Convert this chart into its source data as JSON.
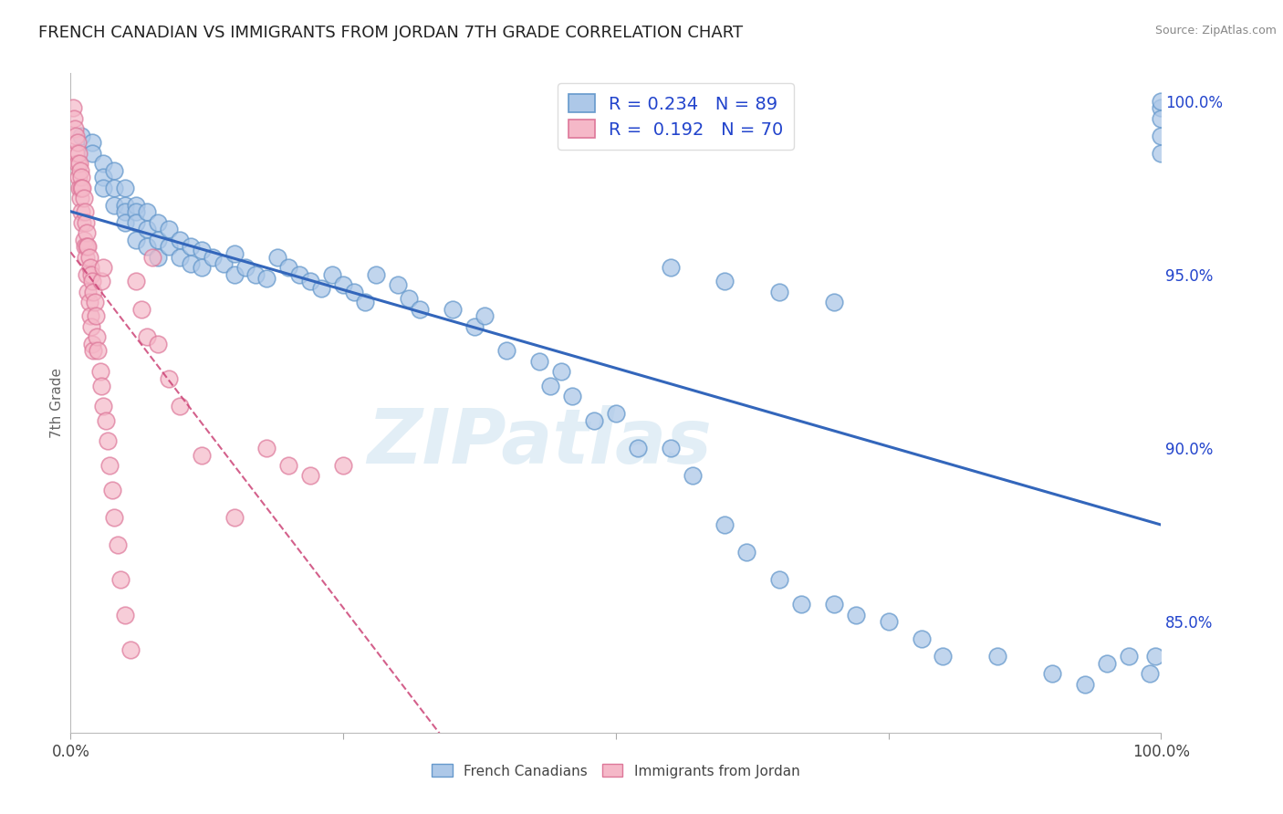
{
  "title": "FRENCH CANADIAN VS IMMIGRANTS FROM JORDAN 7TH GRADE CORRELATION CHART",
  "source": "Source: ZipAtlas.com",
  "ylabel": "7th Grade",
  "ylabel_right_ticks": [
    "100.0%",
    "95.0%",
    "90.0%",
    "85.0%"
  ],
  "ylabel_right_values": [
    1.0,
    0.95,
    0.9,
    0.85
  ],
  "xlim": [
    0.0,
    1.0
  ],
  "ylim": [
    0.818,
    1.008
  ],
  "blue_R": 0.234,
  "blue_N": 89,
  "pink_R": 0.192,
  "pink_N": 70,
  "blue_color": "#adc8e8",
  "blue_edge_color": "#6699cc",
  "blue_line_color": "#3366bb",
  "pink_color": "#f5b8c8",
  "pink_edge_color": "#dd7799",
  "pink_line_color": "#cc4477",
  "legend_R_color": "#2244cc",
  "right_tick_color": "#2244cc",
  "watermark_color": "#d0e4f0",
  "watermark": "ZIPatlas",
  "blue_label": "French Canadians",
  "pink_label": "Immigrants from Jordan",
  "blue_scatter_x": [
    0.01,
    0.02,
    0.02,
    0.03,
    0.03,
    0.03,
    0.04,
    0.04,
    0.04,
    0.05,
    0.05,
    0.05,
    0.05,
    0.06,
    0.06,
    0.06,
    0.06,
    0.07,
    0.07,
    0.07,
    0.08,
    0.08,
    0.08,
    0.09,
    0.09,
    0.1,
    0.1,
    0.11,
    0.11,
    0.12,
    0.12,
    0.13,
    0.14,
    0.15,
    0.15,
    0.16,
    0.17,
    0.18,
    0.19,
    0.2,
    0.21,
    0.22,
    0.23,
    0.24,
    0.25,
    0.26,
    0.27,
    0.28,
    0.3,
    0.31,
    0.32,
    0.35,
    0.37,
    0.38,
    0.4,
    0.43,
    0.44,
    0.45,
    0.46,
    0.48,
    0.5,
    0.52,
    0.55,
    0.57,
    0.6,
    0.62,
    0.65,
    0.67,
    0.7,
    0.72,
    0.75,
    0.78,
    0.8,
    0.85,
    0.9,
    0.93,
    0.95,
    0.97,
    0.99,
    0.995,
    1.0,
    1.0,
    1.0,
    1.0,
    1.0,
    0.55,
    0.6,
    0.65,
    0.7
  ],
  "blue_scatter_y": [
    0.99,
    0.988,
    0.985,
    0.982,
    0.978,
    0.975,
    0.98,
    0.975,
    0.97,
    0.975,
    0.97,
    0.968,
    0.965,
    0.97,
    0.968,
    0.965,
    0.96,
    0.968,
    0.963,
    0.958,
    0.965,
    0.96,
    0.955,
    0.963,
    0.958,
    0.96,
    0.955,
    0.958,
    0.953,
    0.957,
    0.952,
    0.955,
    0.953,
    0.956,
    0.95,
    0.952,
    0.95,
    0.949,
    0.955,
    0.952,
    0.95,
    0.948,
    0.946,
    0.95,
    0.947,
    0.945,
    0.942,
    0.95,
    0.947,
    0.943,
    0.94,
    0.94,
    0.935,
    0.938,
    0.928,
    0.925,
    0.918,
    0.922,
    0.915,
    0.908,
    0.91,
    0.9,
    0.9,
    0.892,
    0.878,
    0.87,
    0.862,
    0.855,
    0.855,
    0.852,
    0.85,
    0.845,
    0.84,
    0.84,
    0.835,
    0.832,
    0.838,
    0.84,
    0.835,
    0.84,
    0.998,
    0.99,
    0.985,
    1.0,
    0.995,
    0.952,
    0.948,
    0.945,
    0.942
  ],
  "pink_scatter_x": [
    0.002,
    0.003,
    0.004,
    0.005,
    0.005,
    0.006,
    0.006,
    0.007,
    0.007,
    0.008,
    0.008,
    0.009,
    0.009,
    0.01,
    0.01,
    0.01,
    0.011,
    0.011,
    0.012,
    0.012,
    0.013,
    0.013,
    0.014,
    0.014,
    0.015,
    0.015,
    0.015,
    0.016,
    0.016,
    0.017,
    0.017,
    0.018,
    0.018,
    0.019,
    0.019,
    0.02,
    0.02,
    0.021,
    0.021,
    0.022,
    0.023,
    0.024,
    0.025,
    0.027,
    0.028,
    0.03,
    0.032,
    0.034,
    0.036,
    0.038,
    0.04,
    0.043,
    0.046,
    0.05,
    0.055,
    0.06,
    0.065,
    0.07,
    0.075,
    0.08,
    0.09,
    0.1,
    0.12,
    0.15,
    0.18,
    0.2,
    0.22,
    0.25,
    0.028,
    0.03
  ],
  "pink_scatter_y": [
    0.998,
    0.995,
    0.992,
    0.99,
    0.985,
    0.988,
    0.982,
    0.985,
    0.978,
    0.982,
    0.975,
    0.98,
    0.972,
    0.978,
    0.968,
    0.975,
    0.975,
    0.965,
    0.972,
    0.96,
    0.968,
    0.958,
    0.965,
    0.955,
    0.962,
    0.958,
    0.95,
    0.958,
    0.945,
    0.955,
    0.942,
    0.952,
    0.938,
    0.95,
    0.935,
    0.948,
    0.93,
    0.945,
    0.928,
    0.942,
    0.938,
    0.932,
    0.928,
    0.922,
    0.918,
    0.912,
    0.908,
    0.902,
    0.895,
    0.888,
    0.88,
    0.872,
    0.862,
    0.852,
    0.842,
    0.948,
    0.94,
    0.932,
    0.955,
    0.93,
    0.92,
    0.912,
    0.898,
    0.88,
    0.9,
    0.895,
    0.892,
    0.895,
    0.948,
    0.952
  ]
}
